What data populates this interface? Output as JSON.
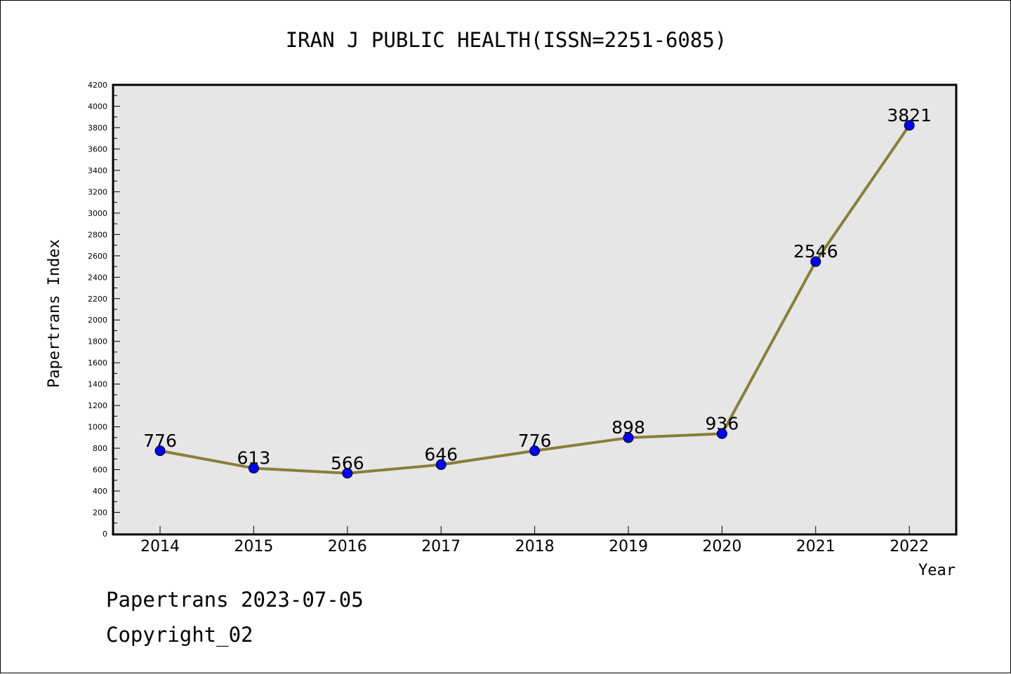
{
  "chart_data": {
    "type": "line",
    "title": "IRAN J PUBLIC HEALTH(ISSN=2251-6085)",
    "xlabel": "Year",
    "ylabel": "Papertrans Index",
    "categories": [
      "2014",
      "2015",
      "2016",
      "2017",
      "2018",
      "2019",
      "2020",
      "2021",
      "2022"
    ],
    "series": [
      {
        "values": [
          776,
          613,
          566,
          646,
          776,
          898,
          936,
          2546,
          3821
        ]
      }
    ],
    "data_labels": [
      "776",
      "613",
      "566",
      "646",
      "776",
      "898",
      "936",
      "2546",
      "3821"
    ],
    "yticks": [
      "0",
      "200",
      "400",
      "600",
      "800",
      "1000",
      "1200",
      "1400",
      "1600",
      "1800",
      "2000",
      "2200",
      "2400",
      "2600",
      "2800",
      "3000",
      "3200",
      "3400",
      "3600",
      "3800",
      "4000",
      "4200"
    ],
    "ylim": [
      0,
      4200
    ],
    "grid": false,
    "legend": "none",
    "colors": {
      "plot_background": "#e6e6e6",
      "line": "#8b7d3a",
      "marker": "#0000ff"
    }
  },
  "footer": {
    "line1": "Papertrans 2023-07-05",
    "line2": "Copyright_02"
  }
}
